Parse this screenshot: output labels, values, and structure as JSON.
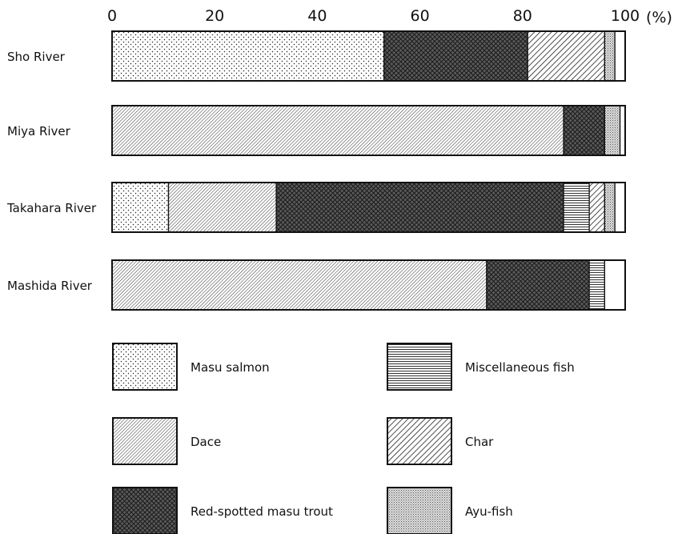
{
  "chart_data": {
    "type": "bar",
    "orientation": "horizontal",
    "stacked": true,
    "x_ticks": [
      "0",
      "20",
      "40",
      "60",
      "80",
      "100"
    ],
    "x_unit": "(%)",
    "xlim": [
      0,
      100
    ],
    "grid": false,
    "legend_position": "bottom",
    "categories": [
      "Sho River",
      "Miya River",
      "Takahara River",
      "Mashida River"
    ],
    "series": [
      {
        "name": "Masu salmon",
        "pattern": "dots",
        "values": [
          53,
          0,
          11,
          0
        ]
      },
      {
        "name": "Dace",
        "pattern": "fine-diagonal",
        "values": [
          0,
          88,
          21,
          73
        ]
      },
      {
        "name": "Red-spotted masu trout",
        "pattern": "cross-hatch",
        "values": [
          28,
          8,
          56,
          20
        ]
      },
      {
        "name": "Miscellaneous fish",
        "pattern": "horizontal-lines",
        "values": [
          0,
          0,
          5,
          3
        ]
      },
      {
        "name": "Char",
        "pattern": "coarse-diagonal",
        "values": [
          15,
          0,
          3,
          0
        ]
      },
      {
        "name": "Ayu-fish",
        "pattern": "fine-dots",
        "values": [
          2,
          3,
          2,
          0
        ]
      }
    ],
    "remainder": {
      "values": [
        2,
        1,
        2,
        4
      ]
    }
  },
  "legend": {
    "layout": "two-columns",
    "items": [
      "Masu salmon",
      "Miscellaneous fish",
      "Dace",
      "Char",
      "Red-spotted masu trout",
      "Ayu-fish"
    ]
  },
  "colors": {
    "ink": "#111111",
    "background": "#ffffff"
  }
}
